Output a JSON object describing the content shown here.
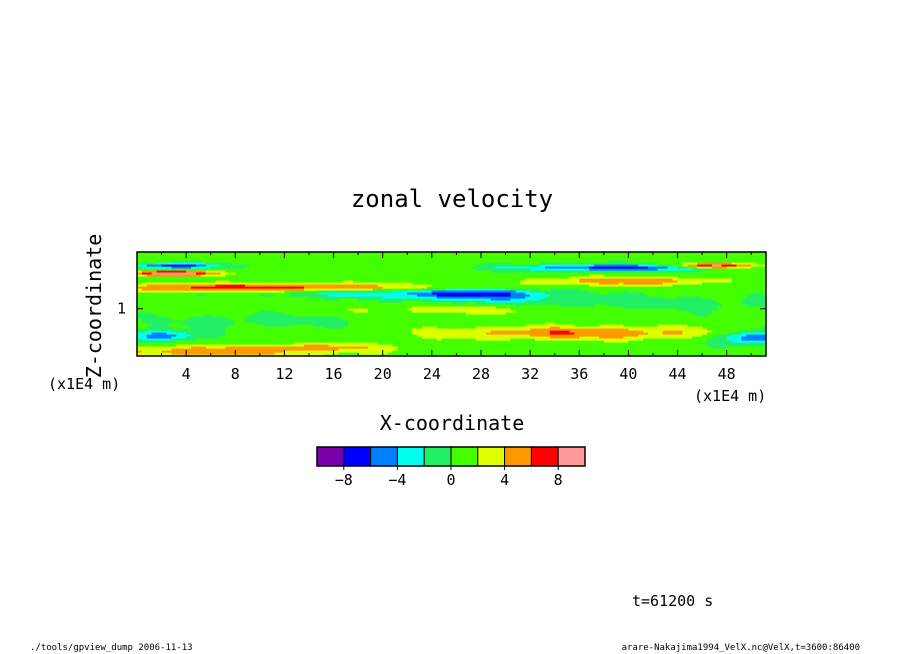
{
  "chart_data": {
    "type": "heatmap",
    "title": "zonal velocity",
    "xlabel": "X-coordinate",
    "ylabel": "Z-coordinate",
    "xunit": "(x1E4 m)",
    "yunit": "(x1E4 m)",
    "xlim": [
      0,
      51.2
    ],
    "ylim": [
      0.5,
      1.6
    ],
    "x_ticks": [
      4,
      8,
      12,
      16,
      20,
      24,
      28,
      32,
      36,
      40,
      44,
      48
    ],
    "y_ticks": [
      1
    ],
    "colorbar": {
      "levels": [
        -10,
        -8,
        -6,
        -4,
        -2,
        0,
        2,
        4,
        6,
        8,
        10
      ],
      "tick_values": [
        -8,
        -4,
        0,
        4,
        8
      ],
      "tick_labels": [
        "−8",
        "−4",
        "0",
        "4",
        "8"
      ],
      "colors": [
        "#7700aa",
        "#0000ff",
        "#0080ff",
        "#00ffee",
        "#22ee66",
        "#44ff00",
        "#ddff00",
        "#ff9900",
        "#ff0000",
        "#ff9999"
      ]
    },
    "features": [
      {
        "xc": 21,
        "zc": 1.17,
        "sx": 7,
        "sz": 0.035,
        "amp": -4.0
      },
      {
        "xc": 28,
        "zc": 1.15,
        "sx": 4,
        "sz": 0.05,
        "amp": -6.0
      },
      {
        "xc": 10,
        "zc": 1.23,
        "sx": 11,
        "sz": 0.03,
        "amp": 6.5
      },
      {
        "xc": 3,
        "zc": 1.46,
        "sx": 2.5,
        "sz": 0.02,
        "amp": -8.0
      },
      {
        "xc": 3,
        "zc": 1.38,
        "sx": 2.5,
        "sz": 0.02,
        "amp": 9.0
      },
      {
        "xc": 47,
        "zc": 1.46,
        "sx": 2.5,
        "sz": 0.02,
        "amp": 9.0
      },
      {
        "xc": 39,
        "zc": 1.44,
        "sx": 6,
        "sz": 0.025,
        "amp": -8.0
      },
      {
        "xc": 40,
        "zc": 1.3,
        "sx": 5,
        "sz": 0.03,
        "amp": 5.0
      },
      {
        "xc": 36,
        "zc": 0.75,
        "sx": 8,
        "sz": 0.05,
        "amp": 5.0
      },
      {
        "xc": 6,
        "zc": 0.55,
        "sx": 7,
        "sz": 0.04,
        "amp": 4.5
      },
      {
        "xc": 15,
        "zc": 0.6,
        "sx": 5,
        "sz": 0.03,
        "amp": 3.0
      },
      {
        "xc": 50,
        "zc": 0.7,
        "sx": 2,
        "sz": 0.05,
        "amp": -7.0
      },
      {
        "xc": 2,
        "zc": 0.72,
        "sx": 2,
        "sz": 0.04,
        "amp": -6.0
      },
      {
        "xc": 40,
        "zc": 1.05,
        "sx": 8,
        "sz": 0.06,
        "amp": -2.5
      },
      {
        "xc": 10,
        "zc": 0.88,
        "sx": 6,
        "sz": 0.06,
        "amp": -1.5
      },
      {
        "xc": 30,
        "zc": 1.0,
        "sx": 9,
        "sz": 0.04,
        "amp": 2.5
      }
    ]
  },
  "annotations": {
    "time": "t=61200 s",
    "footer_left": "./tools/gpview_dump  2006-11-13",
    "footer_right": "arare-Nakajima1994_VelX.nc@VelX,t=3600:86400"
  }
}
